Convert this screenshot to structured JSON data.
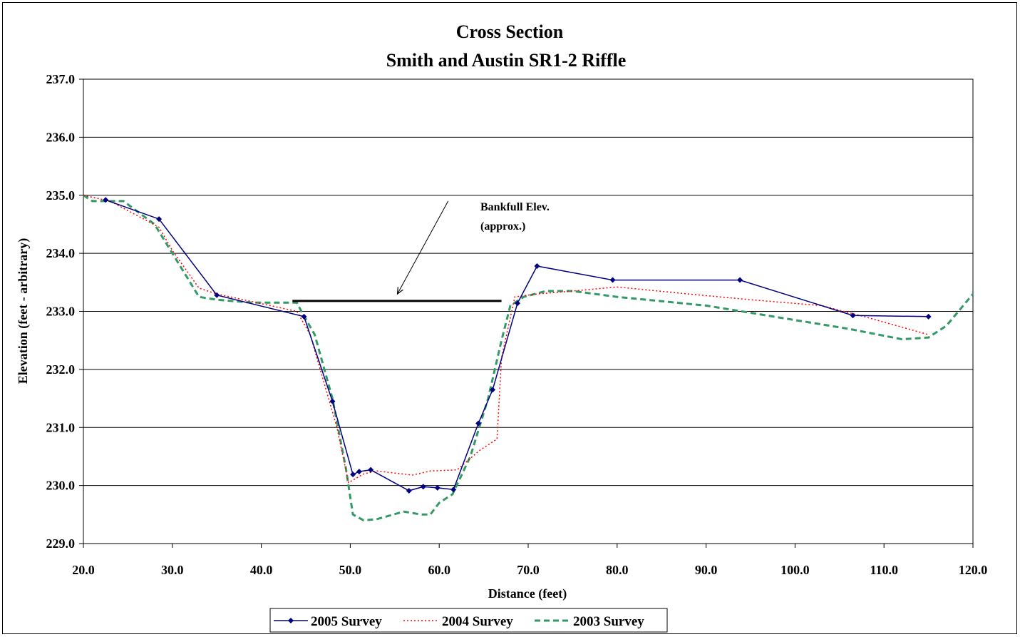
{
  "chart_data": {
    "type": "line",
    "title": "Cross Section",
    "subtitle": "Smith and Austin SR1-2 Riffle",
    "xlabel": "Distance (feet)",
    "ylabel": "Elevation (feet - arbitrary)",
    "xlim": [
      20,
      120
    ],
    "ylim": [
      229,
      237
    ],
    "x_ticks": [
      "20.0",
      "30.0",
      "40.0",
      "50.0",
      "60.0",
      "70.0",
      "80.0",
      "90.0",
      "100.0",
      "110.0",
      "120.0"
    ],
    "y_ticks": [
      "229.0",
      "230.0",
      "231.0",
      "232.0",
      "233.0",
      "234.0",
      "235.0",
      "236.0",
      "237.0"
    ],
    "grid": "horizontal",
    "legend_position": "bottom",
    "series": [
      {
        "name": "2005 Survey",
        "color": "#000080",
        "style": "solid-diamond",
        "points": [
          [
            22.5,
            234.92
          ],
          [
            28.5,
            234.59
          ],
          [
            35.0,
            233.28
          ],
          [
            44.8,
            232.91
          ],
          [
            48.0,
            231.45
          ],
          [
            50.3,
            230.19
          ],
          [
            51.0,
            230.24
          ],
          [
            52.3,
            230.27
          ],
          [
            56.6,
            229.91
          ],
          [
            58.2,
            229.98
          ],
          [
            59.8,
            229.96
          ],
          [
            61.6,
            229.93
          ],
          [
            64.4,
            231.07
          ],
          [
            66.0,
            231.65
          ],
          [
            68.8,
            233.14
          ],
          [
            71.0,
            233.78
          ],
          [
            79.5,
            233.54
          ],
          [
            93.8,
            233.54
          ],
          [
            106.5,
            232.93
          ],
          [
            115.0,
            232.91
          ]
        ]
      },
      {
        "name": "2004 Survey",
        "color": "#ff0000",
        "style": "dotted",
        "points": [
          [
            20.0,
            235.0
          ],
          [
            23.0,
            234.9
          ],
          [
            28.5,
            234.45
          ],
          [
            30.0,
            234.05
          ],
          [
            33.0,
            233.4
          ],
          [
            35.0,
            233.3
          ],
          [
            44.0,
            233.0
          ],
          [
            45.5,
            232.6
          ],
          [
            48.5,
            231.0
          ],
          [
            49.8,
            230.05
          ],
          [
            51.5,
            230.2
          ],
          [
            53.0,
            230.25
          ],
          [
            57.0,
            230.18
          ],
          [
            59.0,
            230.25
          ],
          [
            62.0,
            230.27
          ],
          [
            64.5,
            230.6
          ],
          [
            66.5,
            230.8
          ],
          [
            67.0,
            232.2
          ],
          [
            68.5,
            233.25
          ],
          [
            71.0,
            233.3
          ],
          [
            75.0,
            233.35
          ],
          [
            80.0,
            233.42
          ],
          [
            88.0,
            233.3
          ],
          [
            95.0,
            233.2
          ],
          [
            103.0,
            233.1
          ],
          [
            108.0,
            232.9
          ],
          [
            115.0,
            232.6
          ]
        ]
      },
      {
        "name": "2003 Survey",
        "color": "#339966",
        "style": "dashed",
        "points": [
          [
            20.0,
            235.0
          ],
          [
            21.0,
            234.9
          ],
          [
            22.5,
            234.9
          ],
          [
            24.5,
            234.9
          ],
          [
            28.0,
            234.5
          ],
          [
            30.0,
            234.0
          ],
          [
            33.0,
            233.25
          ],
          [
            35.0,
            233.2
          ],
          [
            39.0,
            233.15
          ],
          [
            44.0,
            233.15
          ],
          [
            44.5,
            233.0
          ],
          [
            46.0,
            232.6
          ],
          [
            48.0,
            231.5
          ],
          [
            49.5,
            230.3
          ],
          [
            50.3,
            229.5
          ],
          [
            51.5,
            229.4
          ],
          [
            53.0,
            229.42
          ],
          [
            56.0,
            229.55
          ],
          [
            58.0,
            229.5
          ],
          [
            59.0,
            229.5
          ],
          [
            60.0,
            229.7
          ],
          [
            61.5,
            229.85
          ],
          [
            63.5,
            230.5
          ],
          [
            65.5,
            231.5
          ],
          [
            67.0,
            232.5
          ],
          [
            68.0,
            233.1
          ],
          [
            69.5,
            233.25
          ],
          [
            72.0,
            233.35
          ],
          [
            75.0,
            233.35
          ],
          [
            80.0,
            233.25
          ],
          [
            90.0,
            233.1
          ],
          [
            100.0,
            232.85
          ],
          [
            106.0,
            232.7
          ],
          [
            112.0,
            232.52
          ],
          [
            115.0,
            232.55
          ],
          [
            117.0,
            232.75
          ],
          [
            120.0,
            233.3
          ]
        ]
      }
    ],
    "bankfull_line": {
      "x": [
        43.5,
        67.0
      ],
      "y": 233.18,
      "color": "#000000"
    },
    "annotation": {
      "lines": [
        "Bankfull Elev.",
        "(approx.)"
      ],
      "arrow_from": [
        61.0,
        234.9
      ],
      "arrow_to": [
        55.3,
        233.3
      ]
    }
  }
}
